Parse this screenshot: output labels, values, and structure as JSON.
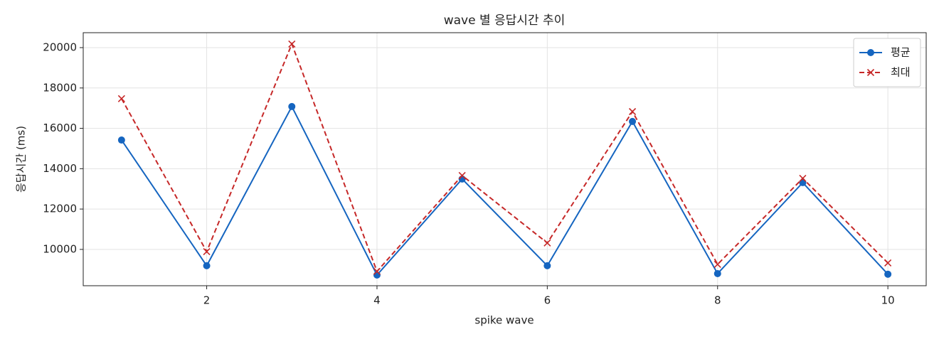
{
  "chart_data": {
    "type": "line",
    "title": "wave 별 응답시간 추이",
    "xlabel": "spike wave",
    "ylabel": "응답시간 (ms)",
    "x": [
      1,
      2,
      3,
      4,
      5,
      6,
      7,
      8,
      9,
      10
    ],
    "series": [
      {
        "name": "평균",
        "color": "#1565c0",
        "marker": "o",
        "linestyle": "-",
        "values": [
          15420,
          9190,
          17080,
          8730,
          13490,
          9190,
          16340,
          8800,
          13310,
          8770
        ]
      },
      {
        "name": "최대",
        "color": "#c62828",
        "marker": "x",
        "linestyle": "--",
        "values": [
          17470,
          9890,
          20180,
          8910,
          13660,
          10320,
          16830,
          9260,
          13520,
          9330
        ]
      }
    ],
    "xlim": [
      0.55,
      10.45
    ],
    "ylim": [
      8200,
      20740
    ],
    "xticks": [
      2,
      4,
      6,
      8,
      10
    ],
    "yticks": [
      10000,
      12000,
      14000,
      16000,
      18000,
      20000
    ],
    "grid": true,
    "legend": "upper right"
  }
}
